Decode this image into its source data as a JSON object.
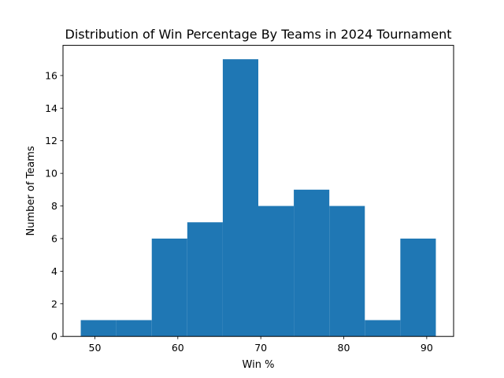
{
  "chart_data": {
    "type": "bar",
    "subtype": "histogram",
    "title": "Distribution of Win Percentage By Teams in 2024 Tournament",
    "xlabel": "Win %",
    "ylabel": "Number of Teams",
    "bin_edges": [
      48.3,
      52.58,
      56.86,
      61.14,
      65.42,
      69.7,
      73.98,
      78.26,
      82.54,
      86.82,
      91.1
    ],
    "values": [
      1,
      1,
      6,
      7,
      17,
      8,
      9,
      8,
      1,
      6
    ],
    "xlim": [
      46.16,
      93.24
    ],
    "ylim": [
      0,
      17.85
    ],
    "xticks": [
      50,
      60,
      70,
      80,
      90
    ],
    "yticks": [
      0,
      2,
      4,
      6,
      8,
      10,
      12,
      14,
      16
    ],
    "bar_color": "#1f77b4",
    "grid": false,
    "legend": "none"
  }
}
